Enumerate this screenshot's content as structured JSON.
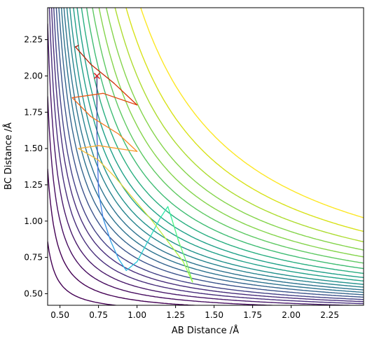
{
  "chart_data": {
    "type": "contour",
    "title": "",
    "xlabel": "AB Distance /Å",
    "ylabel": "BC Distance /Å",
    "xlim": [
      0.42,
      2.47
    ],
    "ylim": [
      0.42,
      2.47
    ],
    "xticks": [
      {
        "value": 0.5,
        "label": "0.50"
      },
      {
        "value": 0.75,
        "label": "0.75"
      },
      {
        "value": 1.0,
        "label": "1.00"
      },
      {
        "value": 1.25,
        "label": "1.25"
      },
      {
        "value": 1.5,
        "label": "1.50"
      },
      {
        "value": 1.75,
        "label": "1.75"
      },
      {
        "value": 2.0,
        "label": "2.00"
      },
      {
        "value": 2.25,
        "label": "2.25"
      }
    ],
    "yticks": [
      {
        "value": 0.5,
        "label": "0.50"
      },
      {
        "value": 0.75,
        "label": "0.75"
      },
      {
        "value": 1.0,
        "label": "1.00"
      },
      {
        "value": 1.25,
        "label": "1.25"
      },
      {
        "value": 1.5,
        "label": "1.50"
      },
      {
        "value": 1.75,
        "label": "1.75"
      },
      {
        "value": 2.0,
        "label": "2.00"
      },
      {
        "value": 2.25,
        "label": "2.25"
      }
    ],
    "grid": false,
    "legend": "none",
    "contour_colormap": "viridis",
    "contour_offsets": [
      0.03,
      0.06,
      0.09,
      0.12,
      0.15,
      0.18,
      0.21,
      0.245,
      0.28,
      0.315,
      0.35,
      0.39,
      0.43,
      0.48,
      0.53,
      0.59,
      0.66,
      0.74,
      0.83,
      0.93,
      1.05,
      1.2,
      1.4
    ],
    "contour_colors": [
      "#440154",
      "#470d60",
      "#48186a",
      "#472d7b",
      "#424086",
      "#3b528b",
      "#33638d",
      "#2c728e",
      "#26828e",
      "#21918c",
      "#1fa088",
      "#28ae80",
      "#3fbc73",
      "#5ec962",
      "#84d44b",
      "#addc30",
      "#d8e219",
      "#fde725"
    ],
    "start_point": {
      "x": 0.74,
      "y": 2.0,
      "marker": "x",
      "color": "#d62728"
    },
    "trajectory": {
      "colormap": "turbo",
      "points": [
        [
          0.74,
          2.0
        ],
        [
          0.74,
          1.8
        ],
        [
          0.74,
          1.6
        ],
        [
          0.745,
          1.4
        ],
        [
          0.75,
          1.2
        ],
        [
          0.78,
          1.02
        ],
        [
          0.83,
          0.86
        ],
        [
          0.88,
          0.74
        ],
        [
          0.93,
          0.66
        ],
        [
          1.0,
          0.72
        ],
        [
          1.08,
          0.88
        ],
        [
          1.15,
          1.02
        ],
        [
          1.2,
          1.1
        ],
        [
          1.23,
          1.0
        ],
        [
          1.27,
          0.86
        ],
        [
          1.32,
          0.72
        ],
        [
          1.36,
          0.58
        ],
        [
          1.3,
          0.72
        ],
        [
          1.2,
          0.86
        ],
        [
          1.1,
          1.0
        ],
        [
          0.98,
          1.15
        ],
        [
          0.86,
          1.3
        ],
        [
          0.75,
          1.42
        ],
        [
          0.62,
          1.5
        ],
        [
          0.75,
          1.52
        ],
        [
          1.0,
          1.48
        ],
        [
          0.88,
          1.6
        ],
        [
          0.7,
          1.72
        ],
        [
          0.58,
          1.85
        ],
        [
          0.78,
          1.88
        ],
        [
          1.0,
          1.8
        ],
        [
          0.85,
          1.95
        ],
        [
          0.7,
          2.08
        ],
        [
          0.6,
          2.2
        ],
        [
          0.62,
          2.21
        ]
      ]
    }
  }
}
